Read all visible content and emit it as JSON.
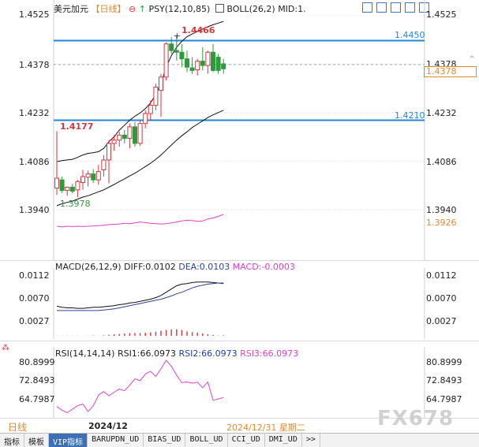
{
  "header": {
    "symbol": "美元加元",
    "period": "【日线】",
    "psy": "PSY(12,10,85)",
    "boll": "BOLL(26,2)",
    "mid": "MID:1."
  },
  "main_axis": {
    "labels": [
      "1.4525",
      "1.4378",
      "1.4232",
      "1.4086",
      "1.3940"
    ],
    "right_labels": [
      "1.4525",
      "1.4378",
      "1.4232",
      "1.4086",
      "1.3940"
    ],
    "hline_upper": "1.4450",
    "hline_lower": "1.4210",
    "current_price": "1.4378",
    "psy_value": "1.3926",
    "high_label": "1.4466",
    "local_high_label": "1.4177",
    "low_label": "1.3978"
  },
  "macd": {
    "title": "MACD(26,12,9)",
    "diff": "DIFF:0.0102",
    "dea": "DEA:0.0103",
    "macd": "MACD:-0.0003",
    "labels": [
      "0.0112",
      "0.0070",
      "0.0027"
    ]
  },
  "rsi": {
    "title": "RSI(14,14,14)",
    "rsi1": "RSI1:66.0973",
    "rsi2": "RSI2:66.0973",
    "rsi3": "RSI3:66.0973",
    "labels": [
      "80.8999",
      "72.8493",
      "64.7987"
    ]
  },
  "footer": {
    "period": "日线",
    "month": "2024/12",
    "date": "2024/12/31 星期二",
    "watermark": "FX678"
  },
  "tabs": [
    "指标",
    "模板",
    "VIP指标",
    "BARUPDN_UD",
    "BIAS_UD",
    "BOLL_UD",
    "CCI_UD",
    "DMI_UD",
    ">>"
  ],
  "colors": {
    "up": "#d9363e",
    "down": "#2e9a3e",
    "hline": "#1f86d8",
    "psy": "#e040c8",
    "macd_dea": "#3040a0",
    "rsi2": "#1f3fb0",
    "rsi3": "#e040c8",
    "price_box": "#e08a2a"
  },
  "chart_data": {
    "type": "candlestick",
    "price_range": [
      1.394,
      1.4525
    ],
    "candles": [
      {
        "o": 1.4005,
        "h": 1.4177,
        "l": 1.3985,
        "c": 1.4035
      },
      {
        "o": 1.403,
        "h": 1.404,
        "l": 1.399,
        "c": 1.3998
      },
      {
        "o": 1.3998,
        "h": 1.401,
        "l": 1.3982,
        "c": 1.4008
      },
      {
        "o": 1.4008,
        "h": 1.4018,
        "l": 1.399,
        "c": 1.3996
      },
      {
        "o": 1.4,
        "h": 1.403,
        "l": 1.3978,
        "c": 1.4025
      },
      {
        "o": 1.4022,
        "h": 1.406,
        "l": 1.4,
        "c": 1.404
      },
      {
        "o": 1.4038,
        "h": 1.4058,
        "l": 1.401,
        "c": 1.4048
      },
      {
        "o": 1.4048,
        "h": 1.4062,
        "l": 1.402,
        "c": 1.403
      },
      {
        "o": 1.403,
        "h": 1.4075,
        "l": 1.4015,
        "c": 1.4055
      },
      {
        "o": 1.406,
        "h": 1.4105,
        "l": 1.404,
        "c": 1.409
      },
      {
        "o": 1.409,
        "h": 1.415,
        "l": 1.402,
        "c": 1.414
      },
      {
        "o": 1.414,
        "h": 1.4165,
        "l": 1.4118,
        "c": 1.415
      },
      {
        "o": 1.415,
        "h": 1.4175,
        "l": 1.413,
        "c": 1.4165
      },
      {
        "o": 1.4165,
        "h": 1.418,
        "l": 1.414,
        "c": 1.4155
      },
      {
        "o": 1.4155,
        "h": 1.42,
        "l": 1.4125,
        "c": 1.419
      },
      {
        "o": 1.419,
        "h": 1.4205,
        "l": 1.413,
        "c": 1.414
      },
      {
        "o": 1.414,
        "h": 1.421,
        "l": 1.4132,
        "c": 1.42
      },
      {
        "o": 1.42,
        "h": 1.424,
        "l": 1.4185,
        "c": 1.423
      },
      {
        "o": 1.423,
        "h": 1.427,
        "l": 1.421,
        "c": 1.4255
      },
      {
        "o": 1.4255,
        "h": 1.432,
        "l": 1.424,
        "c": 1.431
      },
      {
        "o": 1.43,
        "h": 1.435,
        "l": 1.422,
        "c": 1.434
      },
      {
        "o": 1.434,
        "h": 1.4445,
        "l": 1.433,
        "c": 1.444
      },
      {
        "o": 1.444,
        "h": 1.446,
        "l": 1.441,
        "c": 1.442
      },
      {
        "o": 1.442,
        "h": 1.4466,
        "l": 1.439,
        "c": 1.4415
      },
      {
        "o": 1.4415,
        "h": 1.444,
        "l": 1.437,
        "c": 1.4395
      },
      {
        "o": 1.4395,
        "h": 1.442,
        "l": 1.4355,
        "c": 1.437
      },
      {
        "o": 1.4368,
        "h": 1.44,
        "l": 1.435,
        "c": 1.436
      },
      {
        "o": 1.4362,
        "h": 1.4395,
        "l": 1.4345,
        "c": 1.4388
      },
      {
        "o": 1.4388,
        "h": 1.443,
        "l": 1.436,
        "c": 1.4375
      },
      {
        "o": 1.4375,
        "h": 1.442,
        "l": 1.435,
        "c": 1.4415
      },
      {
        "o": 1.4415,
        "h": 1.444,
        "l": 1.4355,
        "c": 1.436
      },
      {
        "o": 1.44,
        "h": 1.441,
        "l": 1.435,
        "c": 1.436
      },
      {
        "o": 1.438,
        "h": 1.4395,
        "l": 1.435,
        "c": 1.4365
      }
    ],
    "boll_upper": [
      1.4085,
      1.4088,
      1.409,
      1.4092,
      1.4098,
      1.4105,
      1.411,
      1.4112,
      1.4115,
      1.4125,
      1.4145,
      1.416,
      1.418,
      1.4195,
      1.421,
      1.4222,
      1.4232,
      1.4245,
      1.4262,
      1.4288,
      1.432,
      1.437,
      1.4405,
      1.443,
      1.4448,
      1.4462,
      1.447,
      1.4478,
      1.4485,
      1.4492,
      1.4498,
      1.4503,
      1.4508
    ],
    "boll_mid": [
      1.3952,
      1.3958,
      1.3962,
      1.3966,
      1.3972,
      1.3978,
      1.3982,
      1.3988,
      1.3994,
      1.4,
      1.4008,
      1.4016,
      1.4025,
      1.4033,
      1.4042,
      1.405,
      1.406,
      1.407,
      1.408,
      1.4092,
      1.4105,
      1.412,
      1.4135,
      1.415,
      1.4163,
      1.4175,
      1.4188,
      1.4198,
      1.4208,
      1.4218,
      1.4226,
      1.4233,
      1.424
    ],
    "psy": [
      1.389,
      1.3888,
      1.389,
      1.3889,
      1.389,
      1.3889,
      1.389,
      1.3891,
      1.3892,
      1.3893,
      1.3895,
      1.3896,
      1.3897,
      1.3899,
      1.3898,
      1.39,
      1.3903,
      1.3901,
      1.3899,
      1.3898,
      1.3897,
      1.3898,
      1.39,
      1.3903,
      1.3906,
      1.3908,
      1.3907,
      1.3905,
      1.3906,
      1.3912,
      1.3915,
      1.392,
      1.3926
    ],
    "macd_range": [
      0.0005,
      0.0125
    ],
    "diff": [
      0.006,
      0.0058,
      0.0057,
      0.0057,
      0.0056,
      0.0056,
      0.0057,
      0.0058,
      0.0058,
      0.0059,
      0.006,
      0.0061,
      0.0063,
      0.0064,
      0.0066,
      0.0067,
      0.0069,
      0.0071,
      0.0073,
      0.0076,
      0.008,
      0.0086,
      0.0092,
      0.0098,
      0.0101,
      0.0102,
      0.0104,
      0.0105,
      0.0105,
      0.0105,
      0.0104,
      0.0103,
      0.0102
    ],
    "dea": [
      0.0052,
      0.0052,
      0.0052,
      0.0052,
      0.0052,
      0.0052,
      0.0052,
      0.0052,
      0.0052,
      0.0053,
      0.0054,
      0.0055,
      0.0057,
      0.0059,
      0.0061,
      0.0063,
      0.0065,
      0.0067,
      0.0069,
      0.0071,
      0.0073,
      0.0076,
      0.0079,
      0.0083,
      0.0086,
      0.009,
      0.0094,
      0.0097,
      0.0099,
      0.0101,
      0.0102,
      0.0103,
      0.0103
    ],
    "macd": [
      0.0001,
      -0.0001,
      0.0001,
      -0.0001,
      0.0001,
      0.0,
      0.0001,
      0.0002,
      0.0001,
      0.0003,
      0.0006,
      0.0009,
      0.0011,
      0.0013,
      0.0015,
      0.0016,
      0.0016,
      0.0018,
      0.002,
      0.0024,
      0.0029,
      0.0034,
      0.0037,
      0.0038,
      0.0034,
      0.0026,
      0.0022,
      0.0018,
      0.0014,
      0.001,
      0.0005,
      0.0002,
      -0.0003
    ],
    "rsi_range": [
      58.0,
      85.0
    ],
    "rsi": [
      62.5,
      61.0,
      60.0,
      61.5,
      62.8,
      63.5,
      60.5,
      62.8,
      67.0,
      68.5,
      66.8,
      68.2,
      69.5,
      68.8,
      71.0,
      73.5,
      72.8,
      75.5,
      76.5,
      74.5,
      77.5,
      80.9,
      78.5,
      75.0,
      72.0,
      72.3,
      71.8,
      72.2,
      70.0,
      72.3,
      65.0,
      65.5,
      66.1
    ]
  }
}
